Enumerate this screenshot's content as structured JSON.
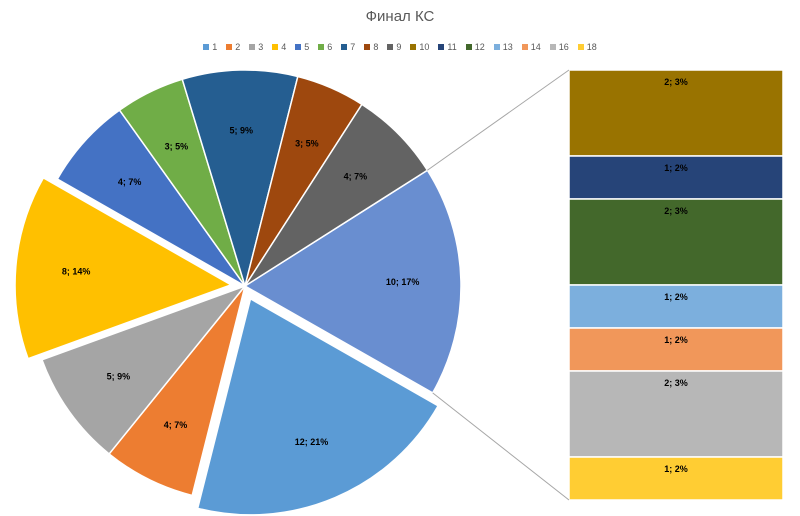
{
  "chart_data": {
    "type": "pie",
    "subtype": "bar-of-pie",
    "title": "Финал КС",
    "legend_position": "top",
    "categories": [
      "1",
      "2",
      "3",
      "4",
      "5",
      "6",
      "7",
      "8",
      "9",
      "10",
      "11",
      "12",
      "13",
      "14",
      "16",
      "18"
    ],
    "colors": {
      "1": "#5B9BD5",
      "2": "#ED7D31",
      "3": "#A5A5A5",
      "4": "#FFC000",
      "5": "#4472C4",
      "6": "#70AD47",
      "7": "#255E91",
      "8": "#9E480E",
      "9": "#636363",
      "10": "#997300",
      "11": "#264478",
      "12": "#43682B",
      "13": "#7CAFDD",
      "14": "#F1975A",
      "16": "#B7B7B7",
      "18": "#FFCD33",
      "other": "#698ED0"
    },
    "pie_slices": [
      {
        "category": "other",
        "value": 10,
        "label": "10; 17%"
      },
      {
        "category": "1",
        "value": 12,
        "label": "12; 21%"
      },
      {
        "category": "2",
        "value": 4,
        "label": "4; 7%"
      },
      {
        "category": "3",
        "value": 5,
        "label": "5; 9%"
      },
      {
        "category": "4",
        "value": 8,
        "label": "8; 14%"
      },
      {
        "category": "5",
        "value": 4,
        "label": "4; 7%"
      },
      {
        "category": "6",
        "value": 3,
        "label": "3; 5%"
      },
      {
        "category": "7",
        "value": 5,
        "label": "5; 9%"
      },
      {
        "category": "8",
        "value": 3,
        "label": "3; 5%"
      },
      {
        "category": "9",
        "value": 4,
        "label": "4; 7%"
      }
    ],
    "bar_segments": [
      {
        "category": "10",
        "value": 2,
        "label": "2; 3%"
      },
      {
        "category": "11",
        "value": 1,
        "label": "1; 2%"
      },
      {
        "category": "12",
        "value": 2,
        "label": "2; 3%"
      },
      {
        "category": "13",
        "value": 1,
        "label": "1; 2%"
      },
      {
        "category": "14",
        "value": 1,
        "label": "1; 2%"
      },
      {
        "category": "16",
        "value": 2,
        "label": "2; 3%"
      },
      {
        "category": "18",
        "value": 1,
        "label": "1; 2%"
      }
    ]
  }
}
